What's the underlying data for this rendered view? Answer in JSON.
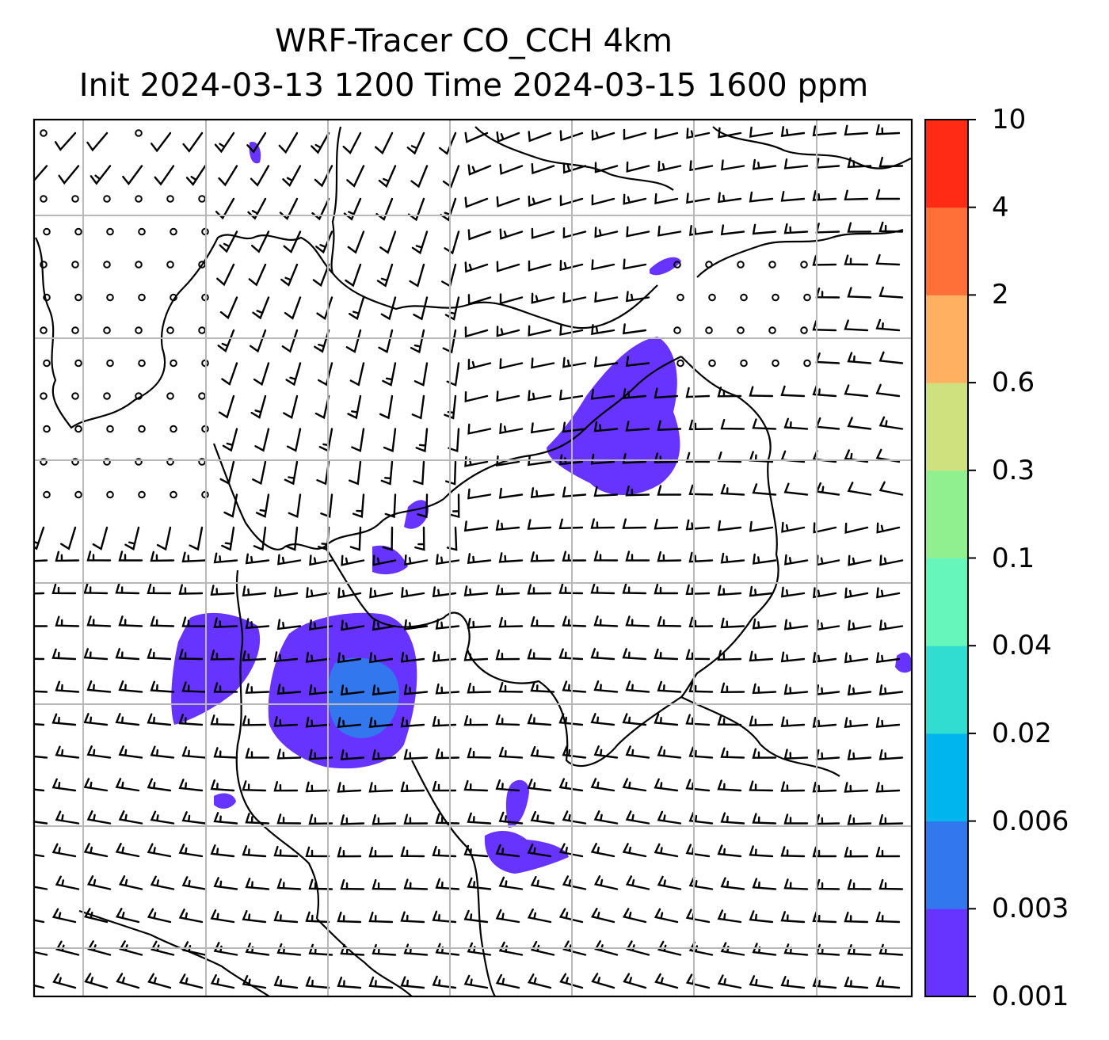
{
  "title": {
    "line1": "WRF-Tracer CO_CCH 4km",
    "line2": "Init 2024-03-13 1200 Time 2024-03-15 1600 ppm"
  },
  "colorbar": {
    "levels": [
      "0.001",
      "0.003",
      "0.006",
      "0.02",
      "0.04",
      "0.1",
      "0.3",
      "0.6",
      "2",
      "4",
      "10"
    ],
    "colors": [
      "#6633ff",
      "#3377ee",
      "#00b4ee",
      "#30ddd0",
      "#66f5bb",
      "#90f090",
      "#cfe07f",
      "#ffb060",
      "#ff7038",
      "#ff2b14"
    ]
  },
  "map": {
    "layers": [
      "tracer concentration shading",
      "wind barbs",
      "coastlines and borders",
      "lat/lon gridlines"
    ]
  }
}
